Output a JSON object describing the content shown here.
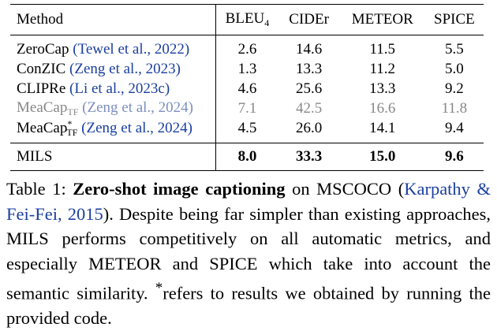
{
  "table": {
    "headers": {
      "method": "Method",
      "bleu": "BLEU",
      "bleu_sub": "4",
      "cider": "CIDEr",
      "meteor": "METEOR",
      "spice": "SPICE"
    },
    "rows": [
      {
        "name": "ZeroCap",
        "name_sub": "",
        "name_sup": "",
        "cite": "(Tewel et al., 2022)",
        "bleu": "2.6",
        "cider": "14.6",
        "meteor": "11.5",
        "spice": "5.5"
      },
      {
        "name": "ConZIC",
        "name_sub": "",
        "name_sup": "",
        "cite": "(Zeng et al., 2023)",
        "bleu": "1.3",
        "cider": "13.3",
        "meteor": "11.2",
        "spice": "5.0"
      },
      {
        "name": "CLIPRe",
        "name_sub": "",
        "name_sup": "",
        "cite": "(Li et al., 2023c)",
        "bleu": "4.6",
        "cider": "25.6",
        "meteor": "13.3",
        "spice": "9.2"
      },
      {
        "name": "MeaCap",
        "name_sub": "TF",
        "name_sup": "",
        "cite": "(Zeng et al., 2024)",
        "bleu": "7.1",
        "cider": "42.5",
        "meteor": "16.6",
        "spice": "11.8"
      },
      {
        "name": "MeaCap",
        "name_sub": "TF",
        "name_sup": "*",
        "cite": "(Zeng et al., 2024)",
        "bleu": "4.5",
        "cider": "26.0",
        "meteor": "14.1",
        "spice": "9.4"
      }
    ],
    "mils": {
      "name": "MILS",
      "bleu": "8.0",
      "cider": "33.3",
      "meteor": "15.0",
      "spice": "9.6"
    }
  },
  "caption": {
    "label": "Table 1:",
    "title": "Zero-shot image captioning",
    "text_1": " on MSCOCO (",
    "cite": "Karpathy & Fei-Fei, 2015",
    "text_2": "). Despite being far simpler than existing approaches, MILS performs competitively on all automatic metrics, and especially METEOR and SPICE which take into account the semantic similarity. ",
    "star": "*",
    "text_3": "refers to results we obtained by running the provided code."
  },
  "colors": {
    "citation": "#1a3fa0",
    "grayed_row": "#888888"
  }
}
